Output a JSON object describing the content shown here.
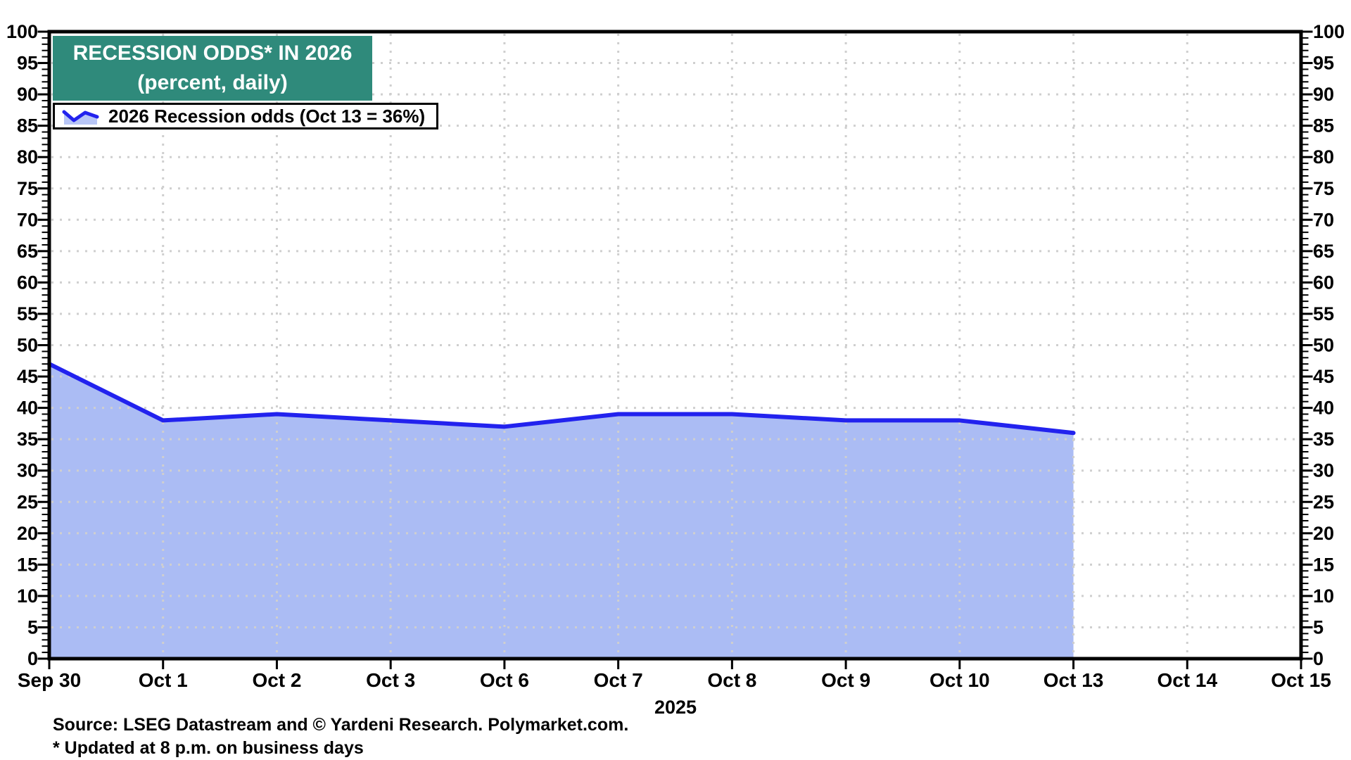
{
  "title": {
    "line1": "RECESSION ODDS* IN 2026",
    "line2": "(percent, daily)"
  },
  "legend": {
    "label": "2026 Recession odds (Oct 13 = 36%)"
  },
  "x_axis": {
    "year_label": "2025"
  },
  "footer": {
    "source": "Source: LSEG Datastream and © Yardeni Research. Polymarket.com.",
    "note": "* Updated at 8 p.m. on business days"
  },
  "colors": {
    "title_box_teal": "#2F8A7B",
    "line_blue": "#2222EE",
    "area_fill_blue": "#ABBCF4",
    "legend_icon_fill": "#B8C6F6",
    "grid_gray": "#CFCFCF",
    "axis_black": "#000000"
  },
  "chart_data": {
    "type": "area",
    "title": "RECESSION ODDS* IN 2026",
    "subtitle": "(percent, daily)",
    "categories": [
      "Sep 30",
      "Oct 1",
      "Oct 2",
      "Oct 3",
      "Oct 6",
      "Oct 7",
      "Oct 8",
      "Oct 9",
      "Oct 10",
      "Oct 13",
      "Oct 14",
      "Oct 15"
    ],
    "series": [
      {
        "name": "2026 Recession odds",
        "values": [
          47,
          38,
          39,
          38,
          37,
          39,
          39,
          38,
          38,
          36
        ]
      }
    ],
    "year_label": "2025",
    "ylim": [
      0,
      100
    ],
    "y_tick_step": 5,
    "y_minor_step": 1,
    "y_ticks": [
      100,
      95,
      90,
      85,
      80,
      75,
      70,
      65,
      60,
      55,
      50,
      45,
      40,
      35,
      30,
      25,
      20,
      15,
      10,
      5,
      0
    ],
    "grid": "dotted",
    "grid_on": true,
    "legend_position": "top-left",
    "y_axis_sides": "both"
  }
}
